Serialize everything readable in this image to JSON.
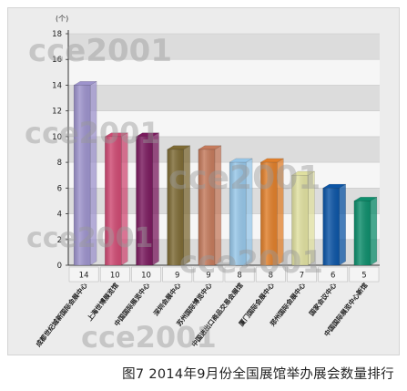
{
  "chart_data": {
    "type": "bar",
    "unit_label": "(个)",
    "categories": [
      "成都世纪城新国际会展中心",
      "上海世博展览馆",
      "中国国际展览中心",
      "深圳会展中心",
      "苏州国际博览中心",
      "中国进出口商品交易会展馆",
      "厦门国际会展中心",
      "郑州国际会展中心",
      "国家会议中心",
      "中国国际展览中心新馆"
    ],
    "values": [
      14,
      10,
      10,
      9,
      9,
      8,
      8,
      7,
      6,
      5
    ],
    "value_labels": [
      "14",
      "10",
      "10",
      "9",
      "9",
      "8",
      "8",
      "7",
      "6",
      "5"
    ],
    "colors": [
      "#9d93cc",
      "#cf4a73",
      "#7a1a5e",
      "#7d6a34",
      "#c47a5c",
      "#96c6e8",
      "#e07f2b",
      "#e0e0a0",
      "#0c55a6",
      "#0e8e6c"
    ],
    "ylim": [
      0,
      18
    ],
    "yticks": [
      "0",
      "2",
      "4",
      "6",
      "8",
      "10",
      "12",
      "14",
      "16",
      "18"
    ],
    "grid": true
  },
  "watermark": "cce2001",
  "caption": "图7 2014年9月份全国展馆举办展会数量排行"
}
